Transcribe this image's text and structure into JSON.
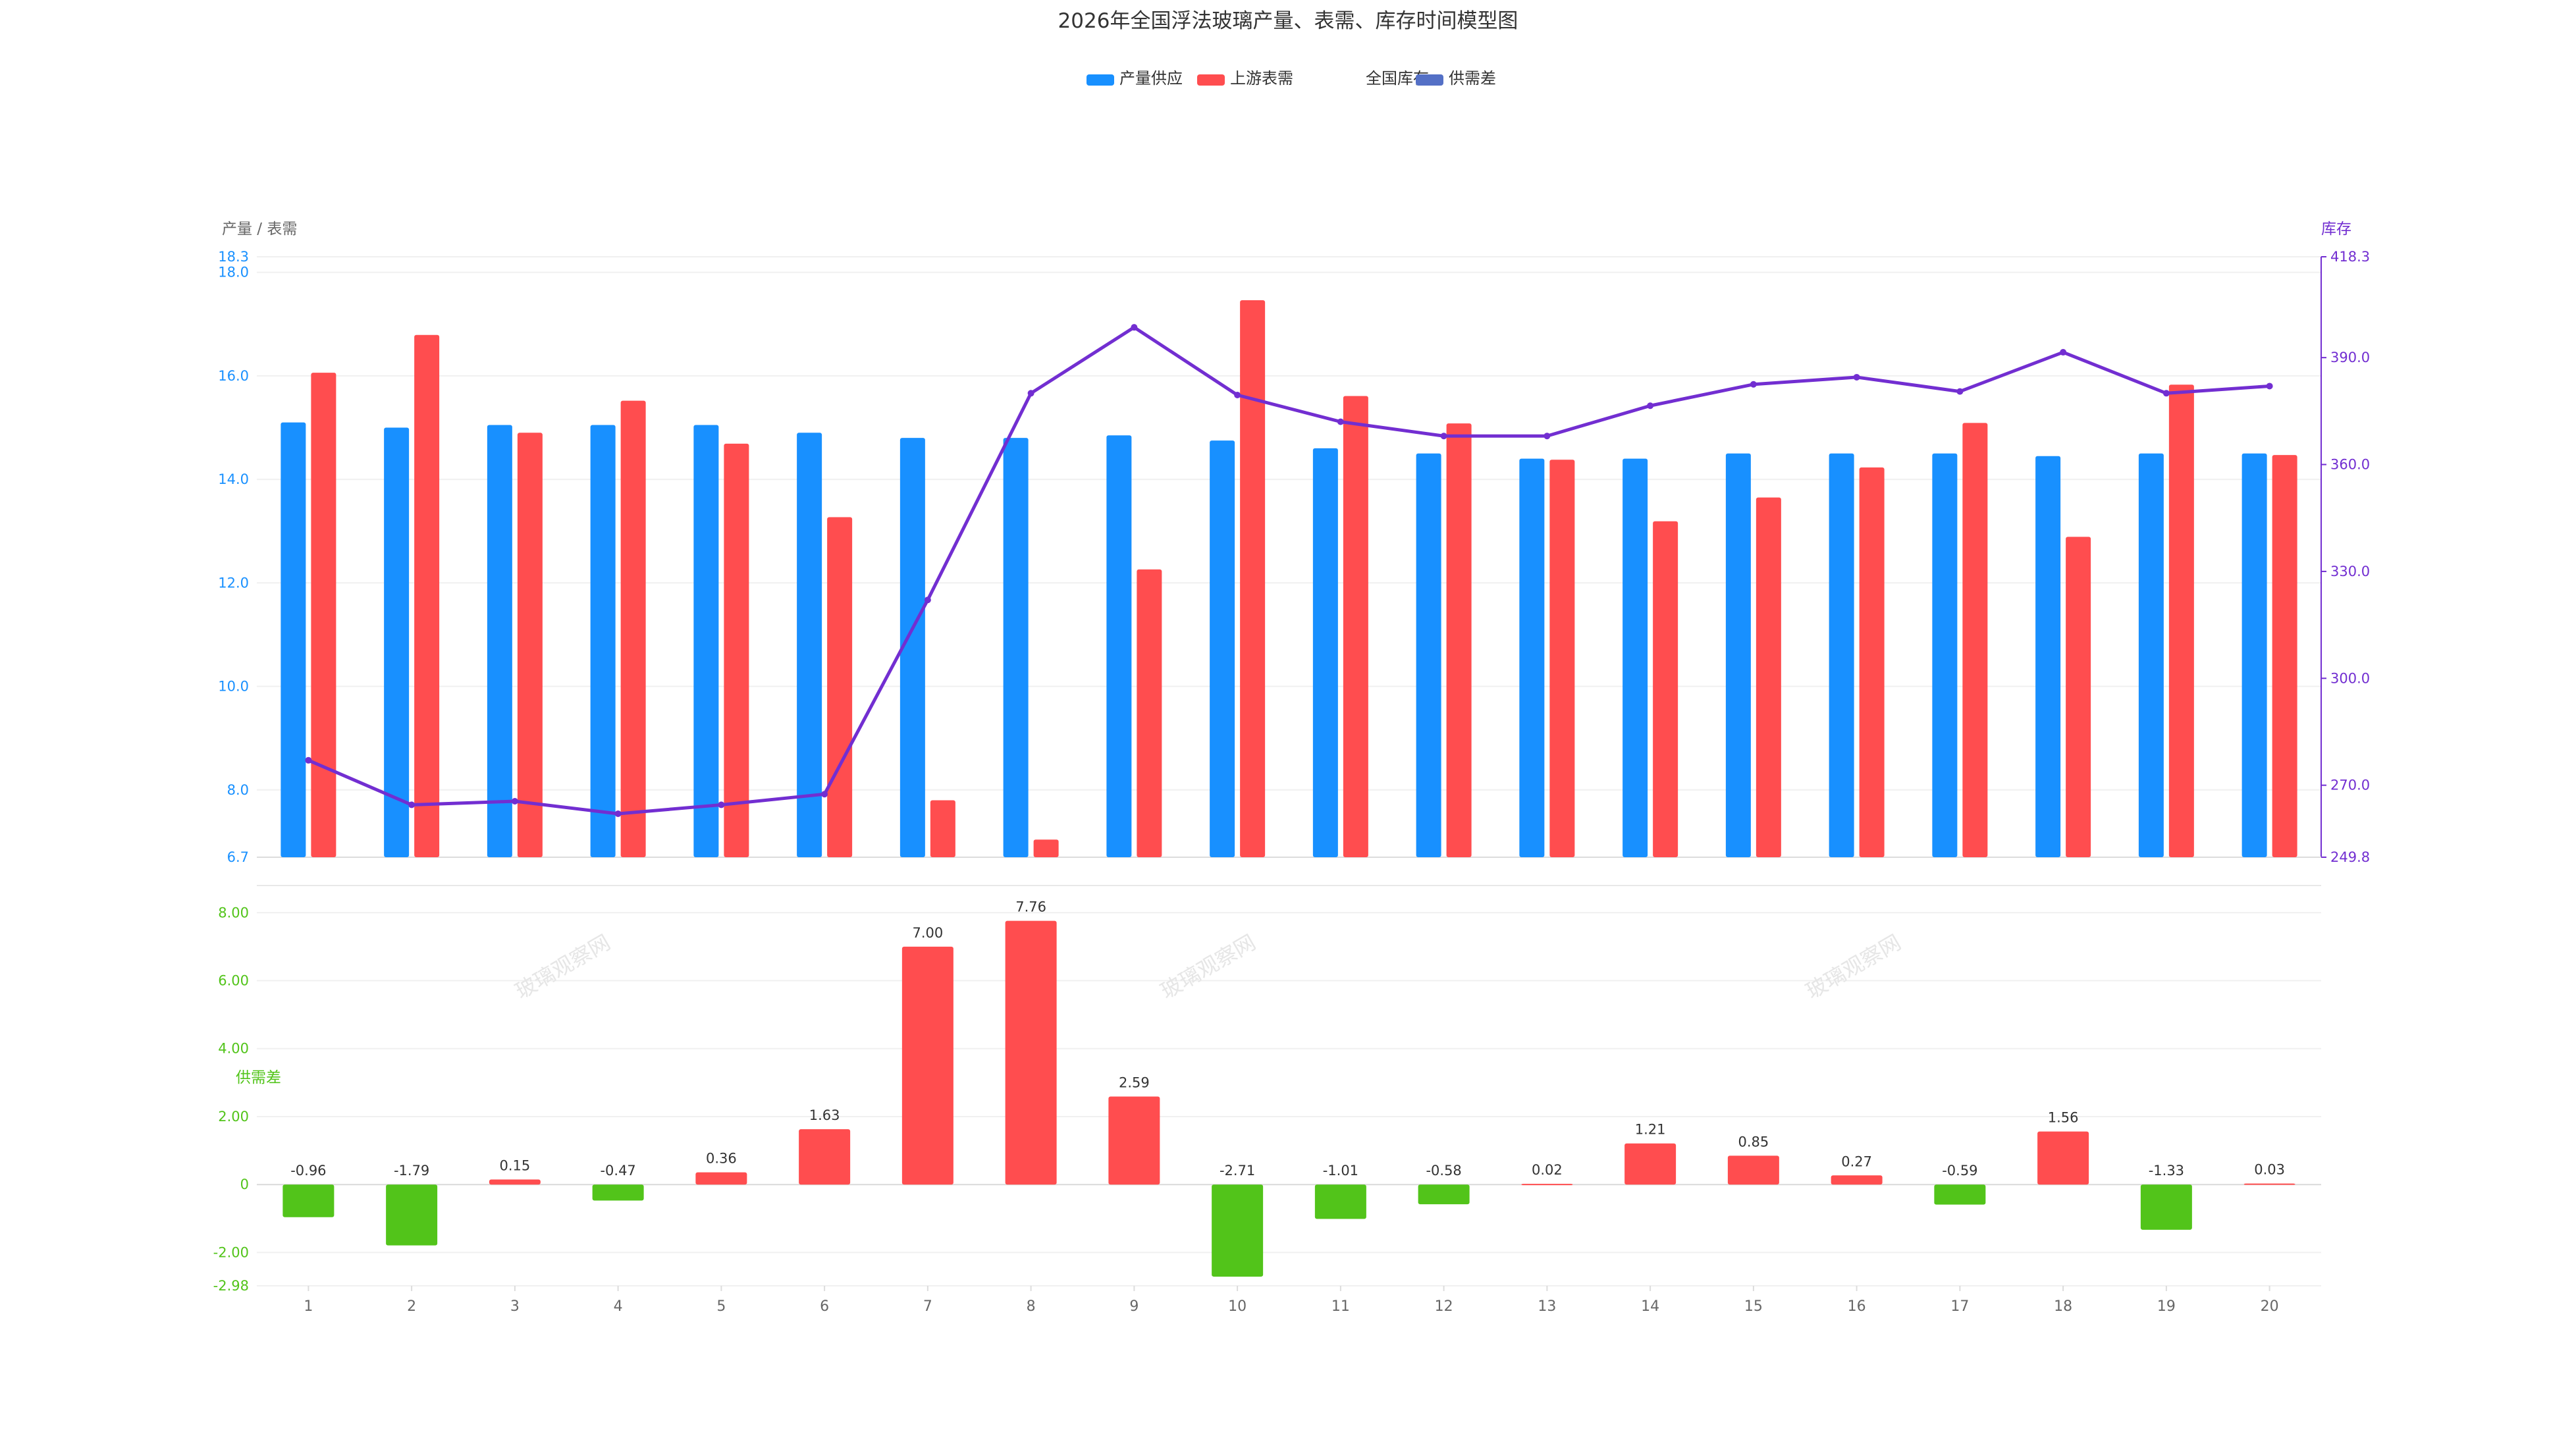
{
  "chart_data": {
    "type": "bar",
    "title": "2026年全国浮法玻璃产量、表需、库存时间模型图",
    "legend": {
      "placement": "top-center",
      "items": [
        {
          "name": "产量供应",
          "color": "#1890ff"
        },
        {
          "name": "上游表需",
          "color": "#ff4d4f"
        },
        {
          "name": "全国库存",
          "color": "#722ed1"
        },
        {
          "name": "供需差",
          "color": "#5470c6"
        }
      ]
    },
    "categories": [
      "1",
      "2",
      "3",
      "4",
      "5",
      "6",
      "7",
      "8",
      "9",
      "10",
      "11",
      "12",
      "13",
      "14",
      "15",
      "16",
      "17",
      "18",
      "19",
      "20"
    ],
    "top_panel": {
      "left_axis_label": "产量 / 表需",
      "right_axis_label": "库存",
      "left_ylim": [
        6.7,
        18.3
      ],
      "left_ticks": [
        "6.7",
        "8.0",
        "10.0",
        "12.0",
        "14.0",
        "16.0",
        "18.0",
        "18.3"
      ],
      "right_ylim": [
        249.8,
        418.3
      ],
      "right_ticks": [
        "249.8",
        "270.0",
        "300.0",
        "330.0",
        "360.0",
        "390.0",
        "418.3"
      ],
      "series": [
        {
          "name": "产量供应",
          "type": "bar",
          "axis": "left",
          "color": "#1890ff",
          "values": [
            15.1,
            15.0,
            15.05,
            15.05,
            15.05,
            14.9,
            14.8,
            14.8,
            14.85,
            14.75,
            14.6,
            14.5,
            14.4,
            14.4,
            14.5,
            14.5,
            14.5,
            14.45,
            14.5,
            14.5
          ]
        },
        {
          "name": "上游表需",
          "type": "bar",
          "axis": "left",
          "color": "#ff4d4f",
          "values": [
            16.06,
            16.79,
            14.9,
            15.52,
            14.69,
            13.27,
            7.8,
            7.04,
            12.26,
            17.46,
            15.61,
            15.08,
            14.38,
            13.19,
            13.65,
            14.23,
            15.09,
            12.89,
            15.83,
            14.47
          ]
        },
        {
          "name": "全国库存",
          "type": "line",
          "axis": "right",
          "color": "#722ed1",
          "values": [
            277.0,
            264.5,
            265.5,
            262.0,
            264.5,
            267.5,
            322.0,
            380.0,
            398.5,
            379.5,
            372.0,
            368.0,
            368.0,
            376.5,
            382.5,
            384.5,
            380.5,
            391.5,
            380.0,
            382.0
          ]
        }
      ]
    },
    "bottom_panel": {
      "axis_label": "供需差",
      "ylim": [
        -2.98,
        8.8
      ],
      "ticks": [
        "-2.98",
        "-2.00",
        "0",
        "2.00",
        "4.00",
        "6.00",
        "8.00"
      ],
      "positive_color": "#ff4d4f",
      "negative_color": "#52c41a",
      "series": {
        "name": "供需差",
        "type": "bar",
        "values": [
          -0.96,
          -1.79,
          0.15,
          -0.47,
          0.36,
          1.63,
          7.0,
          7.76,
          2.59,
          -2.71,
          -1.01,
          -0.58,
          0.02,
          1.21,
          0.85,
          0.27,
          -0.59,
          1.56,
          -1.33,
          0.03
        ],
        "labels": [
          "-0.96",
          "-1.79",
          "0.15",
          "-0.47",
          "0.36",
          "1.63",
          "7.00",
          "7.76",
          "2.59",
          "-2.71",
          "-1.01",
          "-0.58",
          "0.02",
          "1.21",
          "0.85",
          "0.27",
          "-0.59",
          "1.56",
          "-1.33",
          "0.03"
        ]
      }
    },
    "watermark": "玻璃观察网",
    "grid": true
  }
}
